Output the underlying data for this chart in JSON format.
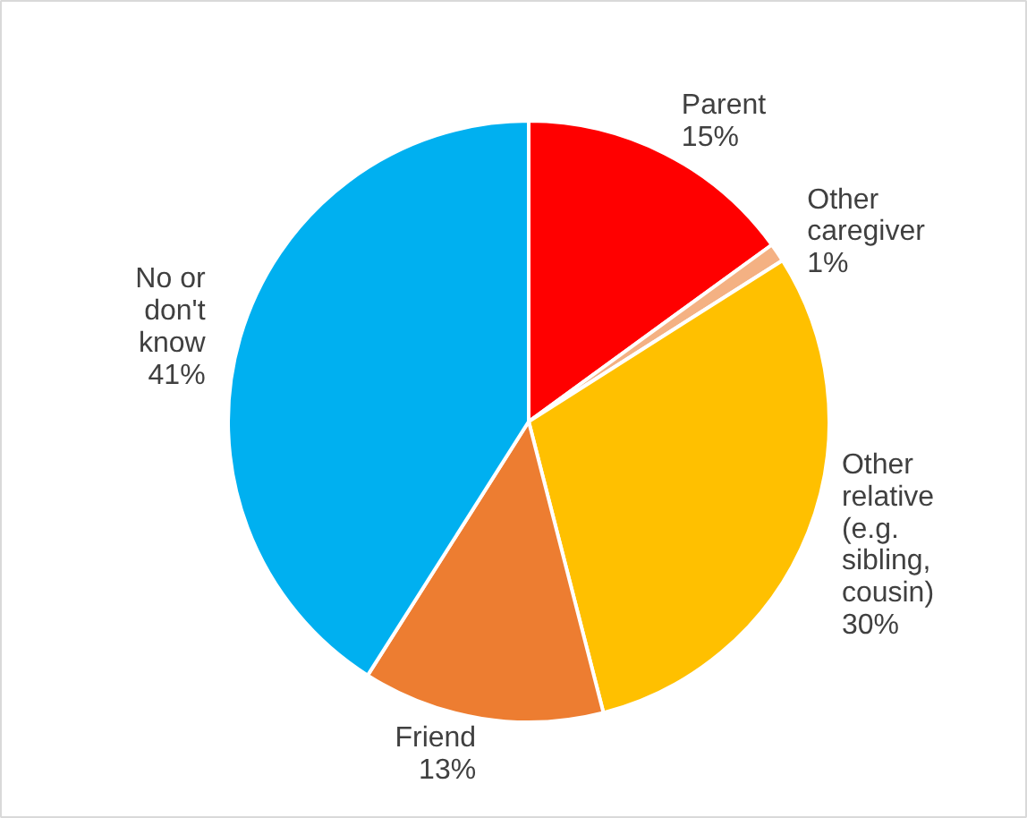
{
  "chart_data": {
    "type": "pie",
    "categories": [
      "Parent",
      "Other caregiver",
      "Other relative (e.g. sibling, cousin)",
      "Friend",
      "No or don't know"
    ],
    "values": [
      15,
      1,
      30,
      13,
      41
    ],
    "value_labels": [
      "15%",
      "1%",
      "30%",
      "13%",
      "41%"
    ],
    "colors": [
      "#ff0000",
      "#f4b183",
      "#ffc000",
      "#ed7d31",
      "#00b0f0"
    ]
  }
}
